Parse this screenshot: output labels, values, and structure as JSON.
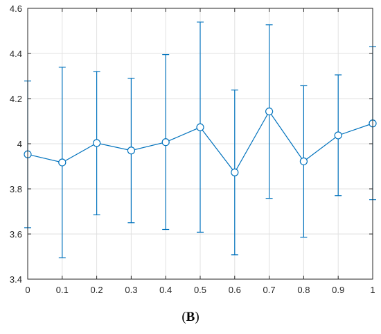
{
  "chart_data": {
    "type": "line",
    "error_bars": true,
    "marker": "open-circle",
    "x": [
      0,
      0.1,
      0.2,
      0.3,
      0.4,
      0.5,
      0.6,
      0.7,
      0.8,
      0.9,
      1
    ],
    "series": [
      {
        "values": [
          3.953,
          3.917,
          4.003,
          3.97,
          4.007,
          4.073,
          3.873,
          4.143,
          3.922,
          4.037,
          4.09
        ],
        "lower": [
          3.628,
          3.495,
          3.685,
          3.65,
          3.62,
          3.608,
          3.508,
          3.758,
          3.586,
          3.77,
          3.752
        ],
        "upper": [
          4.278,
          4.339,
          4.32,
          4.29,
          4.395,
          4.539,
          4.238,
          4.527,
          4.257,
          4.305,
          4.43
        ],
        "color": "#0072BD"
      }
    ],
    "xlim": [
      0,
      1
    ],
    "ylim": [
      3.4,
      4.6
    ],
    "xticks": [
      "0",
      "0.1",
      "0.2",
      "0.3",
      "0.4",
      "0.5",
      "0.6",
      "0.7",
      "0.8",
      "0.9",
      "1"
    ],
    "yticks": [
      "3.4",
      "3.6",
      "3.8",
      "4",
      "4.2",
      "4.4",
      "4.6"
    ],
    "grid": true,
    "title": "",
    "xlabel": "",
    "ylabel": ""
  },
  "panel_label": {
    "open": "(",
    "letter": "B",
    "close": ")"
  }
}
